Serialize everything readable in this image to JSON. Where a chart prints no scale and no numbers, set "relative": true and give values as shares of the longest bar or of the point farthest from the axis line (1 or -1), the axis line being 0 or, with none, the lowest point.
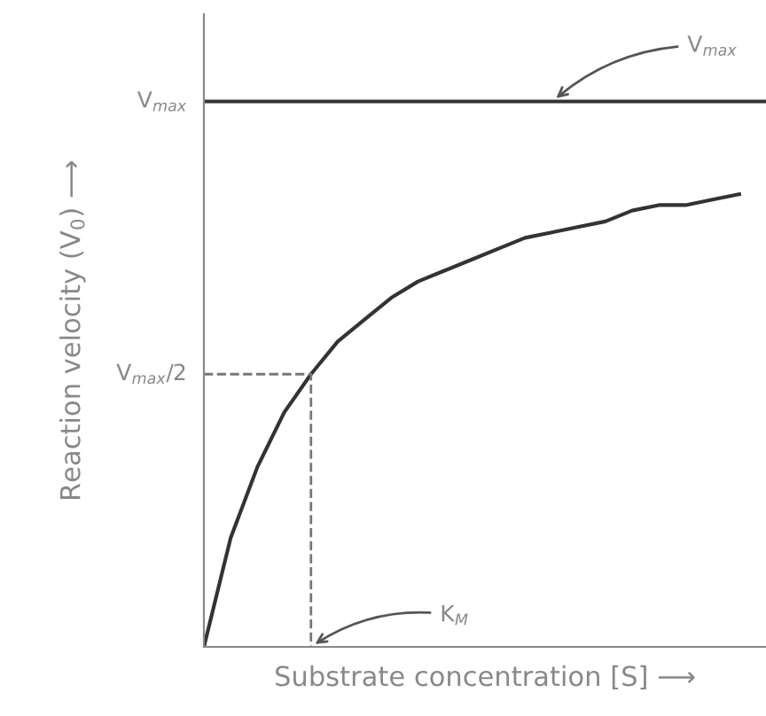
{
  "chart_data": {
    "type": "line",
    "relative": true,
    "xlabel": "Substrate concentration [S] ⟶",
    "ylabel": "Reaction velocity (V$_{0}$) ⟶",
    "categories": [
      null,
      null,
      null,
      null,
      null,
      null,
      null,
      null,
      null,
      null,
      null,
      null,
      null,
      null,
      null,
      null,
      null,
      null,
      null,
      null,
      null,
      null
    ],
    "grid": false,
    "legend": false,
    "marker": "none",
    "line_style": "solid",
    "series": [
      {
        "color": "#333333",
        "values": [
          1,
          1,
          1,
          1,
          1,
          1,
          1,
          1,
          1,
          1,
          1,
          1,
          1,
          1,
          1,
          1,
          1,
          1,
          1,
          1,
          1,
          1
        ]
      },
      {
        "color": "#333333",
        "values": [
          0,
          0.2,
          0.33,
          0.43,
          0.5,
          0.56,
          0.6,
          0.64,
          0.67,
          0.69,
          0.71,
          0.73,
          0.75,
          0.76,
          0.77,
          0.78,
          0.8,
          0.81,
          0.81,
          0.82,
          0.83,
          null
        ]
      }
    ],
    "ref_lines": [
      {
        "axis": "y",
        "value": 0.5,
        "line_style": "dashed",
        "color": "#777777"
      }
    ],
    "annotations": [
      "V$_{max}$",
      "V$_{max}$",
      "V$_{max}$/2",
      "K$_{M}$"
    ]
  }
}
